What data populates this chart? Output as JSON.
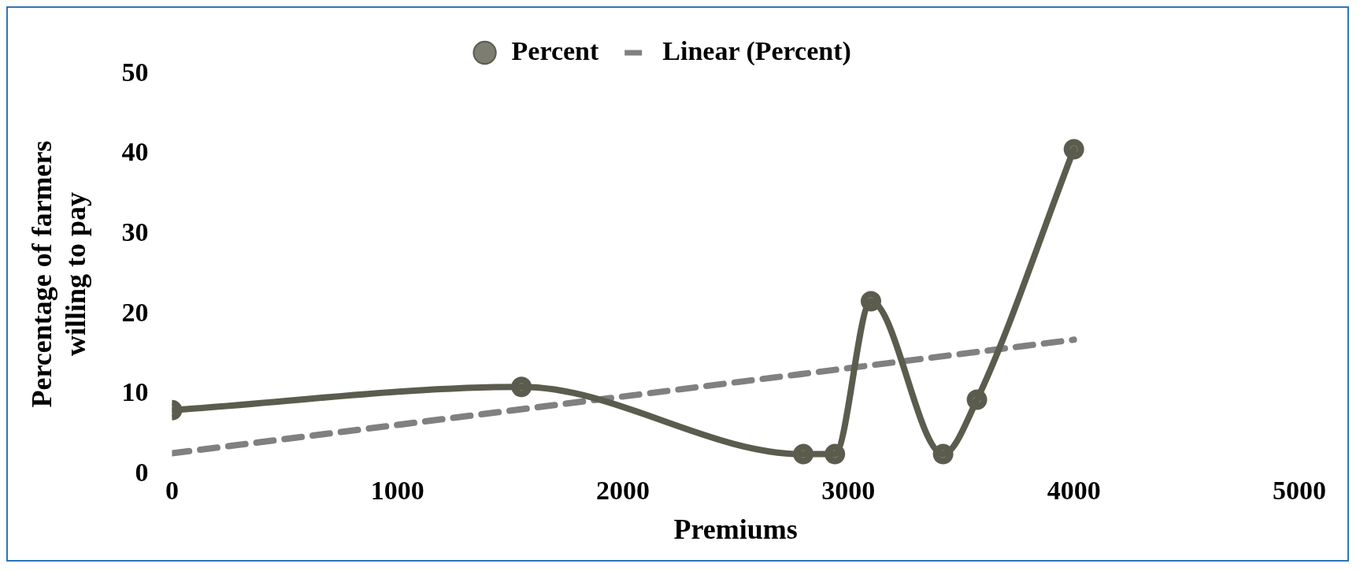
{
  "chart_data": {
    "type": "line",
    "xlabel": "Premiums",
    "ylabel": "Percentage of farmers\nwilling to pay",
    "xlim": [
      0,
      5000
    ],
    "xticks": [
      0,
      1000,
      2000,
      3000,
      4000,
      5000
    ],
    "ylim": [
      0,
      50
    ],
    "yticks": [
      0,
      10,
      20,
      30,
      40,
      50
    ],
    "grid": false,
    "legend": "top",
    "series": [
      {
        "name": "Percent",
        "color": "#5c5c4e",
        "marker": "circle",
        "line_style": "solid",
        "x": [
          0,
          1550,
          2800,
          2940,
          3100,
          3420,
          3570,
          4000
        ],
        "values": [
          8.0,
          10.9,
          2.5,
          2.5,
          21.6,
          2.5,
          9.3,
          40.6
        ]
      },
      {
        "name": "Linear (Percent)",
        "color": "#808080",
        "marker": "none",
        "line_style": "dashed",
        "x": [
          0,
          4000
        ],
        "values": [
          2.6,
          16.8
        ]
      }
    ]
  }
}
